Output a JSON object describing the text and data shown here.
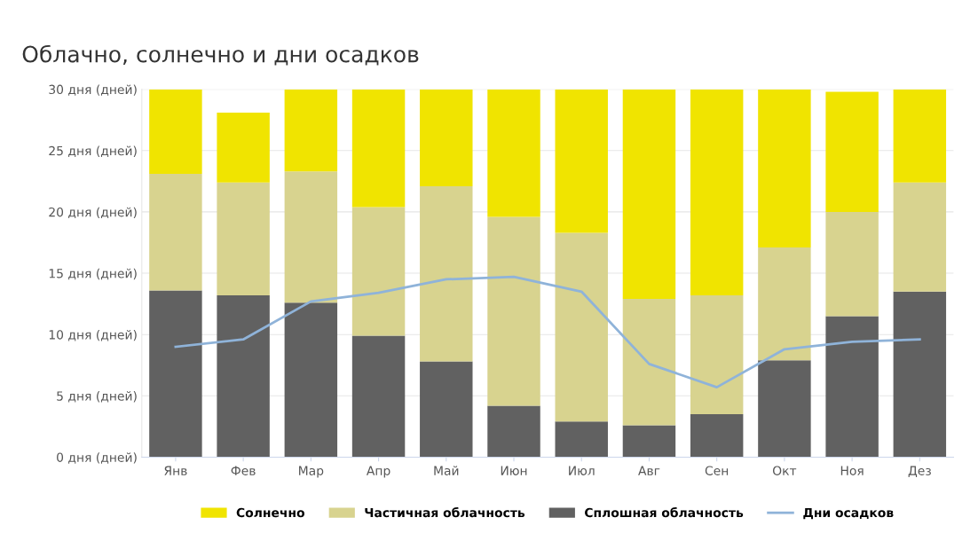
{
  "chart_data": {
    "type": "bar",
    "stacked": true,
    "title": "Облачно, солнечно и дни осадков",
    "categories": [
      "Янв",
      "Фев",
      "Мар",
      "Апр",
      "Май",
      "Июн",
      "Июл",
      "Авг",
      "Сен",
      "Окт",
      "Ноя",
      "Дез"
    ],
    "series": [
      {
        "name": "Сплошная облачность",
        "color": "#616161",
        "values": [
          13.6,
          13.2,
          12.6,
          9.9,
          7.8,
          4.2,
          2.9,
          2.6,
          3.5,
          7.9,
          11.5,
          13.5
        ]
      },
      {
        "name": "Частичная облачность",
        "color": "#d8d38f",
        "values": [
          9.5,
          9.2,
          10.7,
          10.5,
          14.3,
          15.4,
          15.4,
          10.3,
          9.7,
          9.2,
          8.5,
          8.9
        ]
      },
      {
        "name": "Солнечно",
        "color": "#f0e400",
        "values": [
          6.9,
          5.7,
          6.7,
          9.6,
          7.9,
          10.4,
          11.7,
          17.1,
          16.8,
          12.9,
          9.8,
          7.6
        ]
      },
      {
        "name": "Дни осадков",
        "type": "line",
        "color": "#8fb3d9",
        "values": [
          9.0,
          9.6,
          12.7,
          13.4,
          14.5,
          14.7,
          13.5,
          7.6,
          5.7,
          8.8,
          9.4,
          9.6
        ]
      }
    ],
    "ylim": [
      0,
      30
    ],
    "yticks": [
      {
        "value": 0,
        "label": "0 дня (дней)"
      },
      {
        "value": 5,
        "label": "5 дня (дней)"
      },
      {
        "value": 10,
        "label": "10 дня (дней)"
      },
      {
        "value": 15,
        "label": "15 дня (дней)"
      },
      {
        "value": 20,
        "label": "20 дня (дней)"
      },
      {
        "value": 25,
        "label": "25 дня (дней)"
      },
      {
        "value": 30,
        "label": "30 дня (дней)"
      }
    ],
    "grid": "y",
    "legend": "bottom",
    "marker": "none"
  }
}
